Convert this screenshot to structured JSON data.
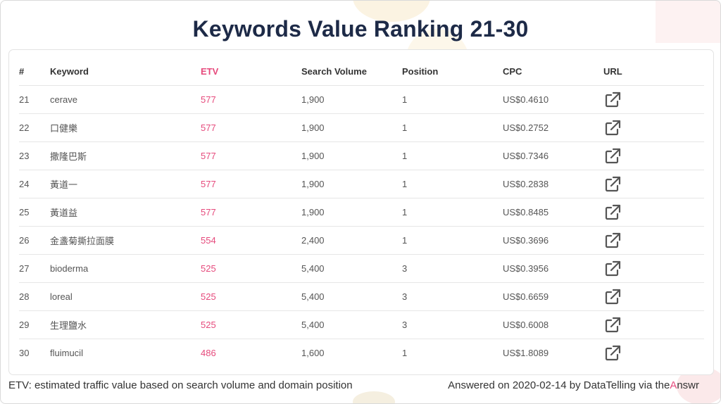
{
  "title": "Keywords Value Ranking 21-30",
  "table": {
    "headers": {
      "rank": "#",
      "keyword": "Keyword",
      "etv": "ETV",
      "search_volume": "Search Volume",
      "position": "Position",
      "cpc": "CPC",
      "url": "URL"
    },
    "rows": [
      {
        "rank": "21",
        "keyword": "cerave",
        "etv": "577",
        "search_volume": "1,900",
        "position": "1",
        "cpc": "US$0.4610"
      },
      {
        "rank": "22",
        "keyword": "口健樂",
        "etv": "577",
        "search_volume": "1,900",
        "position": "1",
        "cpc": "US$0.2752"
      },
      {
        "rank": "23",
        "keyword": "撒隆巴斯",
        "etv": "577",
        "search_volume": "1,900",
        "position": "1",
        "cpc": "US$0.7346"
      },
      {
        "rank": "24",
        "keyword": "黃道一",
        "etv": "577",
        "search_volume": "1,900",
        "position": "1",
        "cpc": "US$0.2838"
      },
      {
        "rank": "25",
        "keyword": "黃道益",
        "etv": "577",
        "search_volume": "1,900",
        "position": "1",
        "cpc": "US$0.8485"
      },
      {
        "rank": "26",
        "keyword": "金盞菊撕拉面膜",
        "etv": "554",
        "search_volume": "2,400",
        "position": "1",
        "cpc": "US$0.3696"
      },
      {
        "rank": "27",
        "keyword": "bioderma",
        "etv": "525",
        "search_volume": "5,400",
        "position": "3",
        "cpc": "US$0.3956"
      },
      {
        "rank": "28",
        "keyword": "loreal",
        "etv": "525",
        "search_volume": "5,400",
        "position": "3",
        "cpc": "US$0.6659"
      },
      {
        "rank": "29",
        "keyword": "生理鹽水",
        "etv": "525",
        "search_volume": "5,400",
        "position": "3",
        "cpc": "US$0.6008"
      },
      {
        "rank": "30",
        "keyword": "fluimucil",
        "etv": "486",
        "search_volume": "1,600",
        "position": "1",
        "cpc": "US$1.8089"
      }
    ]
  },
  "footer": {
    "note": "ETV: estimated traffic value based on search volume and domain position",
    "credit_prefix": "Answered on 2020-02-14 by DataTelling via the",
    "credit_brand_a": "A",
    "credit_brand_rest": "nswr"
  },
  "colors": {
    "title": "#1d2a47",
    "etv_accent": "#e64a7c",
    "icon": "#555555"
  },
  "icons": {
    "url_link": "external-link-icon"
  }
}
